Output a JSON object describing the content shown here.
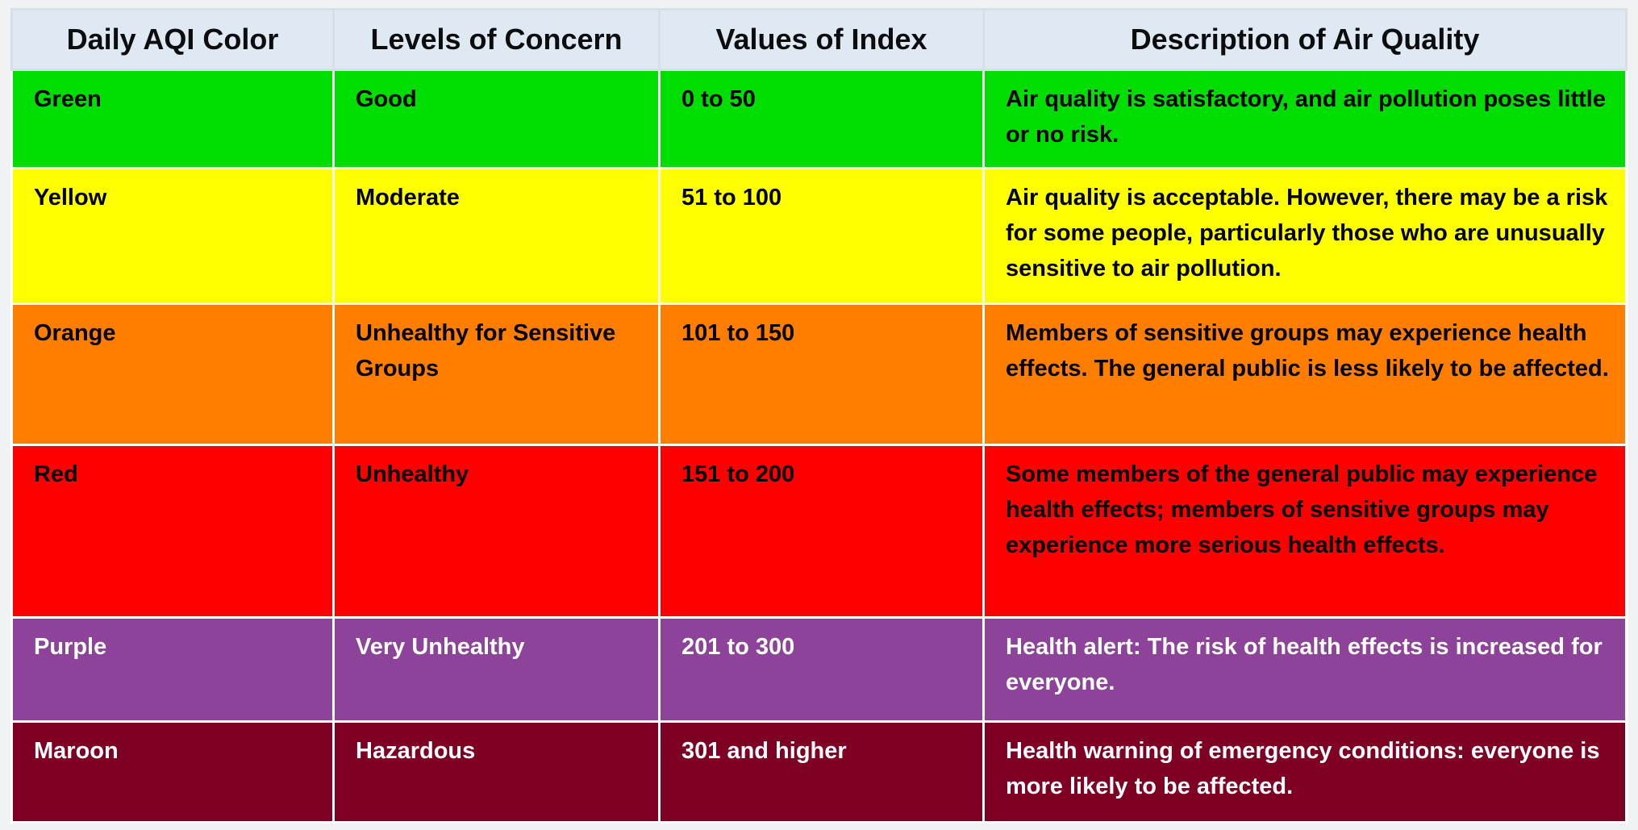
{
  "table": {
    "columns": [
      "Daily AQI Color",
      "Levels of Concern",
      "Values of Index",
      "Description of Air Quality"
    ],
    "rows": [
      {
        "color_name": "Green",
        "level": "Good",
        "range": "0 to 50",
        "description": "Air quality is satisfactory, and air pollution poses little or no risk.",
        "bg": "#00dd00",
        "text": "#000000"
      },
      {
        "color_name": "Yellow",
        "level": "Moderate",
        "range": "51 to 100",
        "description": "Air quality is acceptable. However, there may be a risk for some people, particularly those who are unusually sensitive to air pollution.",
        "bg": "#ffff00",
        "text": "#000000"
      },
      {
        "color_name": "Orange",
        "level": "Unhealthy for Sensitive Groups",
        "range": "101 to 150",
        "description": "Members of sensitive groups may experience health effects. The general public is less likely to be affected.",
        "bg": "#ff7e00",
        "text": "#000000"
      },
      {
        "color_name": "Red",
        "level": "Unhealthy",
        "range": "151 to 200",
        "description": "Some members of the general public may experience health effects; members of sensitive groups may experience more serious health effects.",
        "bg": "#fe0000",
        "text": "#000000"
      },
      {
        "color_name": "Purple",
        "level": "Very Unhealthy",
        "range": "201 to 300",
        "description": "Health alert: The risk of health effects is increased for everyone.",
        "bg": "#8c4399",
        "text": "#ffffff"
      },
      {
        "color_name": "Maroon",
        "level": "Hazardous",
        "range": "301 and higher",
        "description": "Health warning of emergency conditions: everyone is more likely to be affected.",
        "bg": "#7e0023",
        "text": "#ffffff"
      }
    ],
    "colors": {
      "header_bg": "#dfe9f3",
      "page_bg": "#f1f2f4",
      "cell_divider": "#ffffff",
      "header_divider": "#d9dfe6"
    }
  }
}
